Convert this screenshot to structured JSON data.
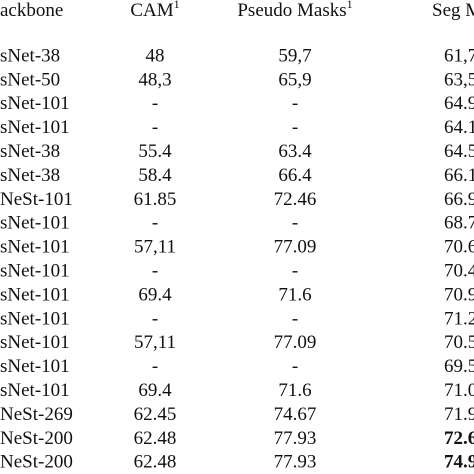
{
  "table": {
    "header": [
      {
        "text": "ackbone"
      },
      {
        "text": "CAM",
        "sup": "1"
      },
      {
        "text": "Pseudo Masks",
        "sup": "1"
      },
      {
        "text": "Seg Ma"
      }
    ],
    "rows": [
      {
        "cells": [
          "sNet-38",
          "48",
          "59,7",
          "61,7"
        ]
      },
      {
        "cells": [
          "sNet-50",
          "48,3",
          "65,9",
          "63,5"
        ]
      },
      {
        "cells": [
          "sNet-101",
          "-",
          "-",
          "64.9"
        ]
      },
      {
        "cells": [
          "sNet-101",
          "-",
          "-",
          "64.1"
        ]
      },
      {
        "cells": [
          "sNet-38",
          "55.4",
          "63.4",
          "64.5"
        ]
      },
      {
        "cells": [
          "sNet-38",
          "58.4",
          "66.4",
          "66.1"
        ]
      },
      {
        "cells": [
          "NeSt-101",
          "61.85",
          "72.46",
          "66.9"
        ]
      },
      {
        "cells": [
          "sNet-101",
          "-",
          "-",
          "68.7"
        ]
      },
      {
        "cells": [
          "sNet-101",
          "57,11",
          "77.09",
          "70.6"
        ]
      },
      {
        "cells": [
          "sNet-101",
          "-",
          "-",
          "70.4"
        ]
      },
      {
        "cells": [
          "sNet-101",
          "69.4",
          "71.6",
          "70.9"
        ]
      },
      {
        "cells": [
          "sNet-101",
          "-",
          "-",
          "71.2"
        ]
      },
      {
        "cells": [
          "sNet-101",
          "57,11",
          "77.09",
          "70.5"
        ]
      },
      {
        "cells": [
          "sNet-101",
          "-",
          "-",
          "69.5"
        ]
      },
      {
        "cells": [
          "sNet-101",
          "69.4",
          "71.6",
          "71.0"
        ]
      },
      {
        "cells": [
          "NeSt-269",
          "62.45",
          "74.67",
          "71.9"
        ]
      },
      {
        "cells": [
          "NeSt-200",
          "62.48",
          "77.93",
          "72.6"
        ],
        "last_bold": true
      },
      {
        "cells": [
          "NeSt-200",
          "62.48",
          "77.93",
          "74.9"
        ],
        "last_bold": true
      }
    ]
  }
}
